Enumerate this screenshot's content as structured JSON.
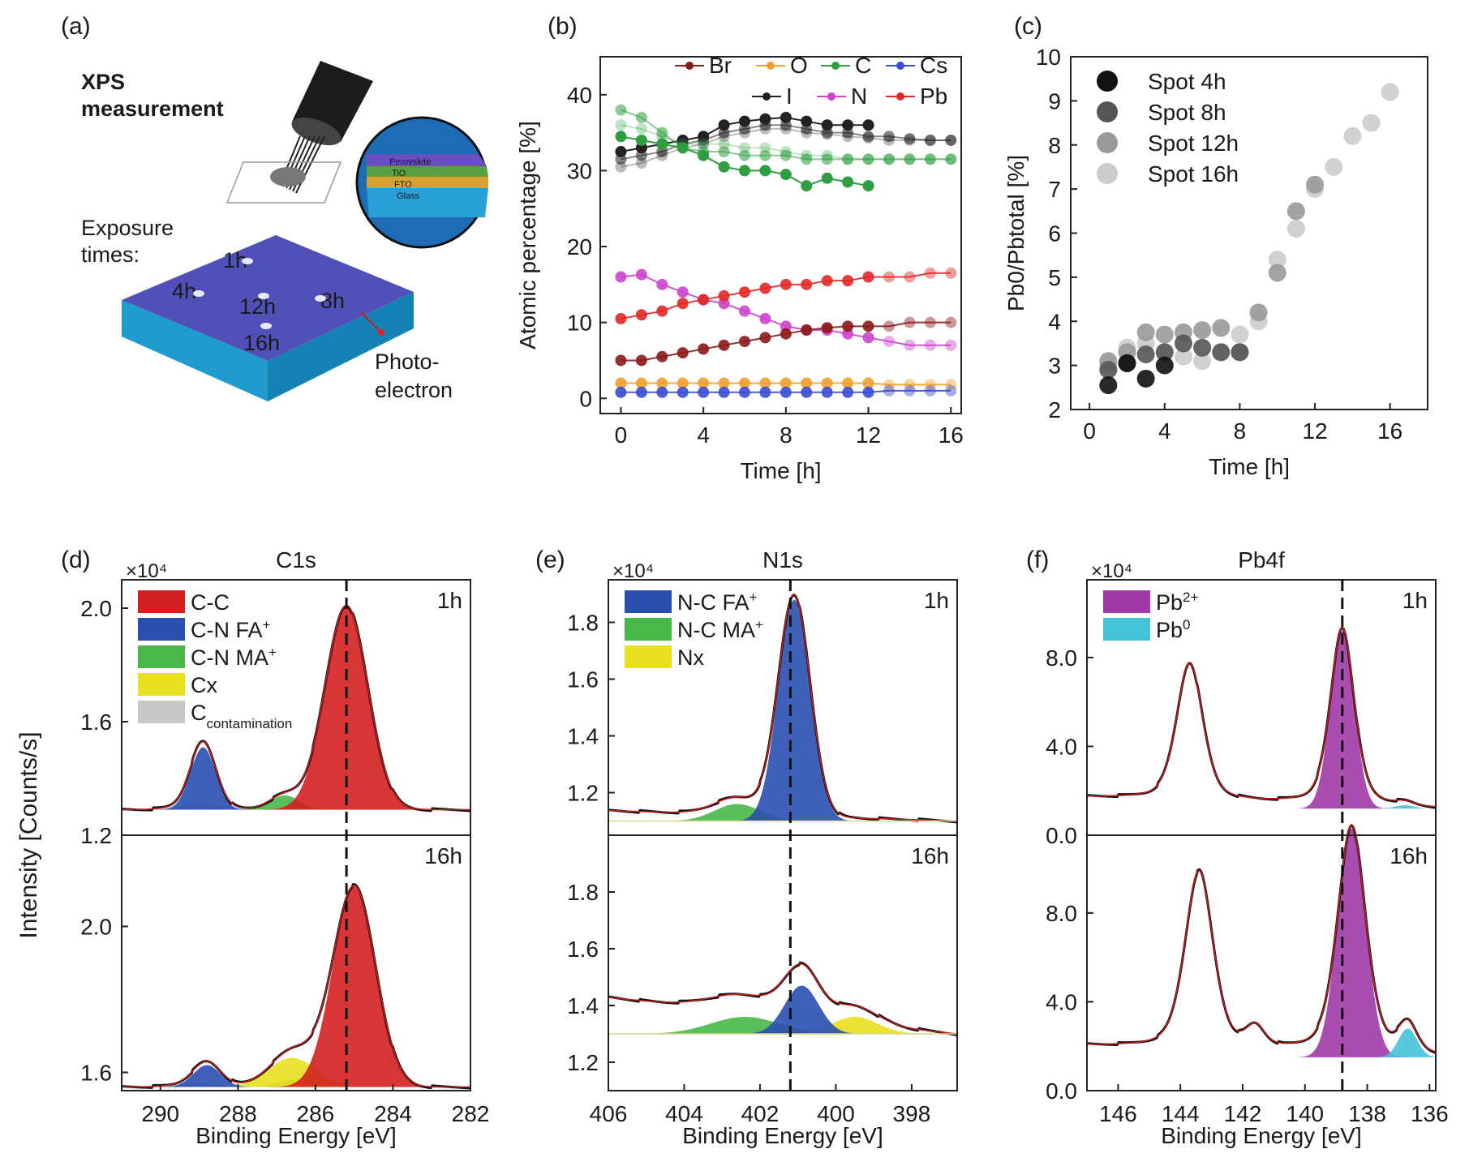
{
  "panels": {
    "a": {
      "letter": "(a)",
      "title_lines": [
        "XPS",
        "measurement"
      ],
      "exposure_lines": [
        "Exposure",
        "times:"
      ],
      "spot_labels": [
        "1h",
        "4h",
        "12h",
        "8h",
        "16h"
      ],
      "layer_labels": [
        "Perovskite",
        "TiO",
        "FTO",
        "Glass"
      ],
      "photo_lines": [
        "Photo-",
        "electron"
      ]
    },
    "b": {
      "letter": "(b)"
    },
    "c": {
      "letter": "(c)"
    },
    "d": {
      "letter": "(d)"
    },
    "e": {
      "letter": "(e)"
    },
    "f": {
      "letter": "(f)"
    }
  },
  "colors": {
    "Br": "#8b1a1a",
    "O": "#f0a030",
    "C": "#2e9e40",
    "Cs": "#3a4bd0",
    "I": "#222222",
    "N": "#cc44cc",
    "Pb": "#e02828",
    "CC": "#d42020",
    "CN_FA": "#2a4fb0",
    "CN_MA": "#48b848",
    "Cx": "#e8e020",
    "Ccont": "#c8c8c8",
    "Pb2": "#a03aa8",
    "Pb0": "#44c4d8",
    "fit": "#c02020",
    "data": "#101010"
  },
  "chart_data": [
    {
      "panel": "b",
      "type": "line",
      "xlabel": "Time [h]",
      "ylabel": "Atomic percentage [%]",
      "xlim": [
        -1,
        16.5
      ],
      "ylim": [
        -2,
        45
      ],
      "xticks": [
        "0",
        "4",
        "8",
        "12",
        "16"
      ],
      "yticks": [
        "0",
        "10",
        "20",
        "30",
        "40"
      ],
      "legend": [
        "Br",
        "O",
        "C",
        "Cs",
        "I",
        "N",
        "Pb"
      ],
      "series": [
        {
          "name": "I",
          "x": [
            0,
            1,
            2,
            3,
            4,
            5,
            6,
            7,
            8,
            9,
            10,
            11,
            12
          ],
          "values": [
            32.5,
            33,
            33.5,
            34,
            34.5,
            36,
            36.5,
            36.8,
            37,
            36.5,
            36,
            36,
            36
          ]
        },
        {
          "name": "I",
          "x": [
            0,
            1,
            2,
            3,
            4,
            5,
            6,
            7,
            8,
            9,
            10,
            11,
            12,
            13,
            14,
            15,
            16
          ],
          "values": [
            31.5,
            32,
            32.5,
            33.5,
            34,
            35,
            35.5,
            36,
            36,
            35.5,
            35,
            35,
            34.5,
            34.5,
            34.2,
            34,
            34
          ]
        },
        {
          "name": "I",
          "x": [
            0,
            1,
            2,
            3,
            4,
            5,
            6,
            7,
            8,
            9,
            10,
            11,
            12,
            13,
            14,
            15,
            16
          ],
          "values": [
            30.5,
            31,
            32,
            33,
            33.5,
            34.5,
            35,
            35.5,
            35.5,
            35,
            34.8,
            34.5,
            34.3,
            34,
            34,
            34,
            34
          ]
        },
        {
          "name": "C",
          "x": [
            0,
            1,
            2,
            3,
            4,
            5,
            6,
            7,
            8,
            9,
            10,
            11,
            12
          ],
          "values": [
            34.5,
            34,
            33.5,
            33,
            32,
            30.5,
            30,
            30,
            29.5,
            28,
            29,
            28.5,
            28
          ]
        },
        {
          "name": "C",
          "x": [
            0,
            1,
            2,
            3,
            4,
            5,
            6,
            7,
            8,
            9,
            10,
            11,
            12,
            13,
            14,
            15,
            16
          ],
          "values": [
            38,
            37,
            35,
            33,
            32.5,
            32.5,
            32,
            32,
            32,
            31.5,
            31.5,
            31.5,
            31.5,
            31.5,
            31.5,
            31.5,
            31.5
          ]
        },
        {
          "name": "C",
          "x": [
            0,
            1,
            2,
            3,
            4,
            5,
            6,
            7,
            8,
            9,
            10,
            11,
            12,
            13,
            14,
            15,
            16
          ],
          "values": [
            36,
            35.5,
            34.5,
            33.5,
            33.5,
            33.5,
            33,
            33,
            32.5,
            32,
            32,
            31.5,
            31.5,
            31.5,
            31.5,
            31.5,
            31.5
          ]
        },
        {
          "name": "N",
          "x": [
            0,
            1,
            2,
            3,
            4,
            5,
            6,
            7,
            8,
            9,
            10,
            11,
            12,
            13,
            14,
            15,
            16
          ],
          "values": [
            16,
            16.3,
            15,
            14,
            13,
            12.5,
            11.5,
            10.5,
            9.5,
            9,
            9,
            8.5,
            8,
            7.5,
            7,
            7,
            7
          ]
        },
        {
          "name": "Pb",
          "x": [
            0,
            1,
            2,
            3,
            4,
            5,
            6,
            7,
            8,
            9,
            10,
            11,
            12,
            13,
            14,
            15,
            16
          ],
          "values": [
            10.5,
            11,
            11.5,
            12.5,
            13,
            13.5,
            14,
            14.5,
            15,
            15,
            15.5,
            15.5,
            16,
            16,
            16,
            16.5,
            16.5
          ]
        },
        {
          "name": "Br",
          "x": [
            0,
            1,
            2,
            3,
            4,
            5,
            6,
            7,
            8,
            9,
            10,
            11,
            12,
            13,
            14,
            15,
            16
          ],
          "values": [
            5,
            5,
            5.5,
            6,
            6.5,
            7,
            7.5,
            8,
            8.5,
            9,
            9.3,
            9.5,
            9.5,
            9.5,
            10,
            10,
            10
          ]
        },
        {
          "name": "O",
          "x": [
            0,
            1,
            2,
            3,
            4,
            5,
            6,
            7,
            8,
            9,
            10,
            11,
            12,
            13,
            14,
            15,
            16
          ],
          "values": [
            2,
            2,
            2,
            2,
            2,
            2,
            2,
            2,
            2,
            2,
            2,
            2,
            2,
            1.8,
            1.8,
            1.8,
            1.8
          ]
        },
        {
          "name": "Cs",
          "x": [
            0,
            1,
            2,
            3,
            4,
            5,
            6,
            7,
            8,
            9,
            10,
            11,
            12,
            13,
            14,
            15,
            16
          ],
          "values": [
            0.8,
            0.8,
            0.8,
            0.8,
            0.8,
            0.8,
            0.8,
            0.8,
            0.8,
            0.8,
            0.8,
            0.8,
            0.8,
            1,
            1,
            1,
            1
          ]
        }
      ]
    },
    {
      "panel": "c",
      "type": "scatter",
      "xlabel": "Time [h]",
      "ylabel": "Pb0/Pbtotal [%]",
      "xlim": [
        -1,
        18
      ],
      "ylim": [
        2,
        10
      ],
      "xticks": [
        "0",
        "4",
        "8",
        "12",
        "16"
      ],
      "yticks": [
        "2",
        "3",
        "4",
        "5",
        "6",
        "7",
        "8",
        "9",
        "10"
      ],
      "legend": [
        "Spot 4h",
        "Spot 8h",
        "Spot 12h",
        "Spot 16h"
      ],
      "series": [
        {
          "name": "Spot 4h",
          "x": [
            1,
            2,
            3,
            4
          ],
          "values": [
            2.55,
            3.05,
            2.7,
            3.0
          ]
        },
        {
          "name": "Spot 8h",
          "x": [
            1,
            2,
            3,
            4,
            5,
            6,
            7,
            8
          ],
          "values": [
            2.9,
            3.05,
            3.25,
            3.3,
            3.5,
            3.4,
            3.3,
            3.3
          ]
        },
        {
          "name": "Spot 12h",
          "x": [
            1,
            2,
            3,
            4,
            5,
            6,
            7,
            8,
            9,
            10,
            11,
            12
          ],
          "values": [
            3.1,
            3.3,
            3.75,
            3.7,
            3.75,
            3.8,
            3.85,
            3.3,
            4.2,
            5.1,
            6.5,
            7.1
          ]
        },
        {
          "name": "Spot 16h",
          "x": [
            1,
            2,
            3,
            4,
            5,
            6,
            7,
            8,
            9,
            10,
            11,
            12,
            13,
            14,
            15,
            16
          ],
          "values": [
            3.0,
            3.4,
            3.5,
            3.3,
            3.2,
            3.1,
            3.3,
            3.7,
            4.0,
            5.4,
            6.1,
            7.0,
            7.5,
            8.2,
            8.5,
            9.2
          ]
        }
      ]
    },
    {
      "panel": "d",
      "type": "area",
      "title": "C1s",
      "xlabel": "Binding Energy [eV]",
      "multiplier": "×10⁴",
      "xlim": [
        291,
        282
      ],
      "xticks": [
        "290",
        "288",
        "286",
        "284",
        "282"
      ],
      "dashed_x": 285.2,
      "legend": [
        "C-C",
        "C-N FA+",
        "C-N MA+",
        "Cx",
        "Ccontamination"
      ],
      "subplots": [
        {
          "label": "1h",
          "ylim": [
            1.2,
            2.1
          ],
          "yticks": [
            "1.2",
            "1.6",
            "2.0"
          ],
          "baseline": 1.29,
          "peaks": [
            {
              "name": "C-C",
              "center": 285.2,
              "amp": 0.72,
              "width": 0.55
            },
            {
              "name": "C-N FA+",
              "center": 288.9,
              "amp": 0.22,
              "width": 0.32
            },
            {
              "name": "C-N MA+",
              "center": 286.8,
              "amp": 0.05,
              "width": 0.4
            },
            {
              "name": "Cx",
              "center": 286.0,
              "amp": 0.0,
              "width": 0.4
            },
            {
              "name": "Ccontamination",
              "center": 289.0,
              "amp": 0.02,
              "width": 0.6
            }
          ]
        },
        {
          "label": "16h",
          "ylim": [
            1.55,
            2.25
          ],
          "yticks": [
            "1.6",
            "2.0"
          ],
          "baseline": 1.56,
          "peaks": [
            {
              "name": "C-C",
              "center": 285.0,
              "amp": 0.55,
              "width": 0.55
            },
            {
              "name": "C-N FA+",
              "center": 288.8,
              "amp": 0.06,
              "width": 0.35
            },
            {
              "name": "C-N MA+",
              "center": 286.5,
              "amp": 0.02,
              "width": 0.5
            },
            {
              "name": "Cx",
              "center": 286.6,
              "amp": 0.08,
              "width": 0.6
            },
            {
              "name": "Ccontamination",
              "center": 289.0,
              "amp": 0.01,
              "width": 0.6
            }
          ]
        }
      ]
    },
    {
      "panel": "e",
      "type": "area",
      "title": "N1s",
      "xlabel": "Binding Energy [eV]",
      "multiplier": "×10⁴",
      "xlim": [
        406,
        396.8
      ],
      "xticks": [
        "406",
        "404",
        "402",
        "400",
        "398"
      ],
      "dashed_x": 401.2,
      "legend": [
        "N-C FA+",
        "N-C MA+",
        "Nx"
      ],
      "subplots": [
        {
          "label": "1h",
          "ylim": [
            1.05,
            1.95
          ],
          "yticks": [
            "1.2",
            "1.4",
            "1.6",
            "1.8"
          ],
          "baseline": 1.1,
          "peaks": [
            {
              "name": "N-C FA+",
              "center": 401.1,
              "amp": 0.78,
              "width": 0.42
            },
            {
              "name": "N-C MA+",
              "center": 402.6,
              "amp": 0.06,
              "width": 0.6
            },
            {
              "name": "Nx",
              "center": 399.5,
              "amp": 0.0,
              "width": 0.5
            }
          ]
        },
        {
          "label": "16h",
          "ylim": [
            1.1,
            2.0
          ],
          "yticks": [
            "1.2",
            "1.4",
            "1.6",
            "1.8"
          ],
          "baseline": 1.3,
          "peaks": [
            {
              "name": "N-C FA+",
              "center": 400.9,
              "amp": 0.17,
              "width": 0.45
            },
            {
              "name": "N-C MA+",
              "center": 402.4,
              "amp": 0.06,
              "width": 0.9
            },
            {
              "name": "Nx",
              "center": 399.5,
              "amp": 0.06,
              "width": 0.6
            }
          ]
        }
      ]
    },
    {
      "panel": "f",
      "type": "area",
      "title": "Pb4f",
      "xlabel": "Binding Energy [eV]",
      "multiplier": "×10⁴",
      "xlim": [
        147,
        135.8
      ],
      "xticks": [
        "146",
        "144",
        "142",
        "140",
        "138",
        "136"
      ],
      "dashed_x": 138.8,
      "legend": [
        "Pb2+",
        "Pb0"
      ],
      "subplots": [
        {
          "label": "1h",
          "ylim": [
            0,
            11.5
          ],
          "yticks": [
            "0.0",
            "4.0",
            "8.0"
          ],
          "baseline": 1.2,
          "peaks": [
            {
              "name": "Pb2+",
              "center": 138.8,
              "amp": 8.0,
              "width": 0.38
            },
            {
              "name": "Pb4f5/2",
              "center": 143.7,
              "amp": 6.2,
              "width": 0.42
            },
            {
              "name": "Pb0",
              "center": 136.8,
              "amp": 0.15,
              "width": 0.3
            }
          ]
        },
        {
          "label": "16h",
          "ylim": [
            0,
            11.5
          ],
          "yticks": [
            "0.0",
            "4.0",
            "8.0"
          ],
          "baseline": 1.5,
          "peaks": [
            {
              "name": "Pb2+",
              "center": 138.5,
              "amp": 10.3,
              "width": 0.45
            },
            {
              "name": "Pb4f5/2",
              "center": 143.4,
              "amp": 8.0,
              "width": 0.45
            },
            {
              "name": "Pb0",
              "center": 136.7,
              "amp": 1.3,
              "width": 0.3
            },
            {
              "name": "Pb0b",
              "center": 141.6,
              "amp": 0.9,
              "width": 0.3
            }
          ]
        }
      ]
    }
  ],
  "shared": {
    "intensity_label": "Intensity [Counts/s]"
  }
}
